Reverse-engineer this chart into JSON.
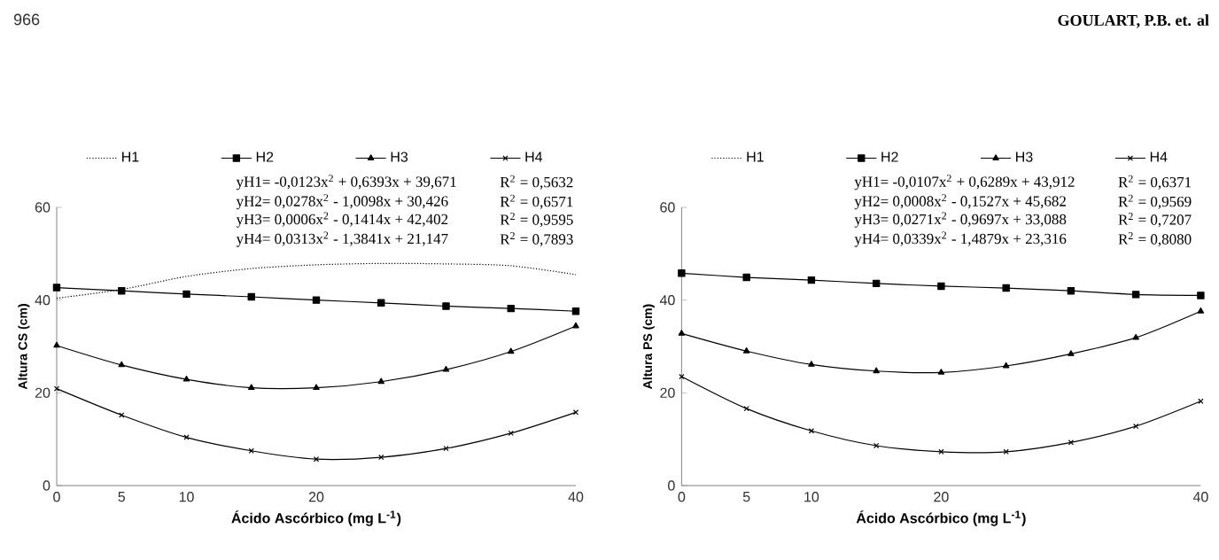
{
  "chart_data": [
    {
      "type": "line",
      "categories": [
        "0",
        "5",
        "10",
        null,
        "20",
        null,
        null,
        null,
        "40"
      ],
      "xlabel": "Ácido Ascórbico (mg L$^{-1}$)",
      "ylabel": "Altura CS (cm)",
      "ylim": [
        0,
        60
      ],
      "yticks": [
        0,
        20,
        40,
        60
      ],
      "legend": "top",
      "grid": false,
      "series": [
        {
          "name": "H1",
          "color": "#000000",
          "marker": "none",
          "line_style": "dotted",
          "values": [
            40.4,
            42.3,
            45.1,
            46.8,
            47.6,
            47.9,
            47.8,
            47.4,
            45.5
          ]
        },
        {
          "name": "H2",
          "color": "#000000",
          "marker": "square",
          "line_style": "solid",
          "values": [
            42.7,
            42.0,
            41.3,
            40.7,
            40.0,
            39.4,
            38.7,
            38.2,
            37.6
          ]
        },
        {
          "name": "H3",
          "color": "#000000",
          "marker": "triangle",
          "line_style": "solid",
          "values": [
            30.2,
            26.0,
            22.9,
            21.1,
            21.1,
            22.4,
            25.0,
            28.9,
            34.4
          ]
        },
        {
          "name": "H4",
          "color": "#000000",
          "marker": "cross",
          "line_style": "solid",
          "values": [
            20.9,
            15.2,
            10.4,
            7.5,
            5.7,
            6.1,
            8.0,
            11.3,
            15.8
          ]
        }
      ],
      "annotations": [
        "yH1= -0,0123x$^{2}$ + 0,6393x + 39,671",
        "R$^{2}$ = 0,5632",
        "yH2= 0,0278x$^{2}$ - 1,0098x + 30,426",
        "R$^{2}$ = 0,6571",
        "yH3= 0,0006x$^{2}$ - 0,1414x + 42,402",
        "R$^{2}$ = 0,9595",
        "yH4= 0,0313x$^{2}$ - 1,3841x + 21,147",
        "R$^{2}$ = 0,7893"
      ]
    },
    {
      "type": "line",
      "categories": [
        "0",
        "5",
        "10",
        null,
        "20",
        null,
        null,
        null,
        "40"
      ],
      "xlabel": "Ácido Ascórbico (mg L$^{-1}$)",
      "ylabel": "Altura PS (cm)",
      "ylim": [
        0,
        60
      ],
      "yticks": [
        0,
        20,
        40,
        60
      ],
      "legend": "top",
      "grid": false,
      "series": [
        {
          "name": "H1",
          "color": "#000000",
          "marker": "none",
          "line_style": "dotted",
          "values": [
            null,
            null,
            null,
            null,
            null,
            null,
            null,
            null,
            null
          ]
        },
        {
          "name": "H2",
          "color": "#000000",
          "marker": "square",
          "line_style": "solid",
          "values": [
            45.8,
            44.9,
            44.3,
            43.6,
            43.0,
            42.6,
            42.0,
            41.2,
            41.0
          ]
        },
        {
          "name": "H3",
          "color": "#000000",
          "marker": "triangle",
          "line_style": "solid",
          "values": [
            32.8,
            29.0,
            26.1,
            24.7,
            24.4,
            25.8,
            28.4,
            31.9,
            37.6
          ]
        },
        {
          "name": "H4",
          "color": "#000000",
          "marker": "cross",
          "line_style": "solid",
          "values": [
            23.5,
            16.6,
            11.8,
            8.6,
            7.3,
            7.3,
            9.3,
            12.8,
            18.2
          ]
        }
      ],
      "annotations": [
        "yH1= -0,0107x$^{2}$ + 0,6289x + 43,912",
        "R$^{2}$ = 0,6371",
        "yH2= 0,0008x$^{2}$ - 0,1527x + 45,682",
        "R$^{2}$ = 0,9569",
        "yH3= 0,0271x$^{2}$ - 0,9697x + 33,088",
        "R$^{2}$ = 0,7207",
        "yH4= 0,0339x$^{2}$ - 1,4879x + 23,316",
        "R$^{2}$ = 0,8080"
      ]
    },
    {
      "type": "other",
      "title": "GOULART, P.B. et. al",
      "annotations": [
        "966"
      ]
    }
  ]
}
